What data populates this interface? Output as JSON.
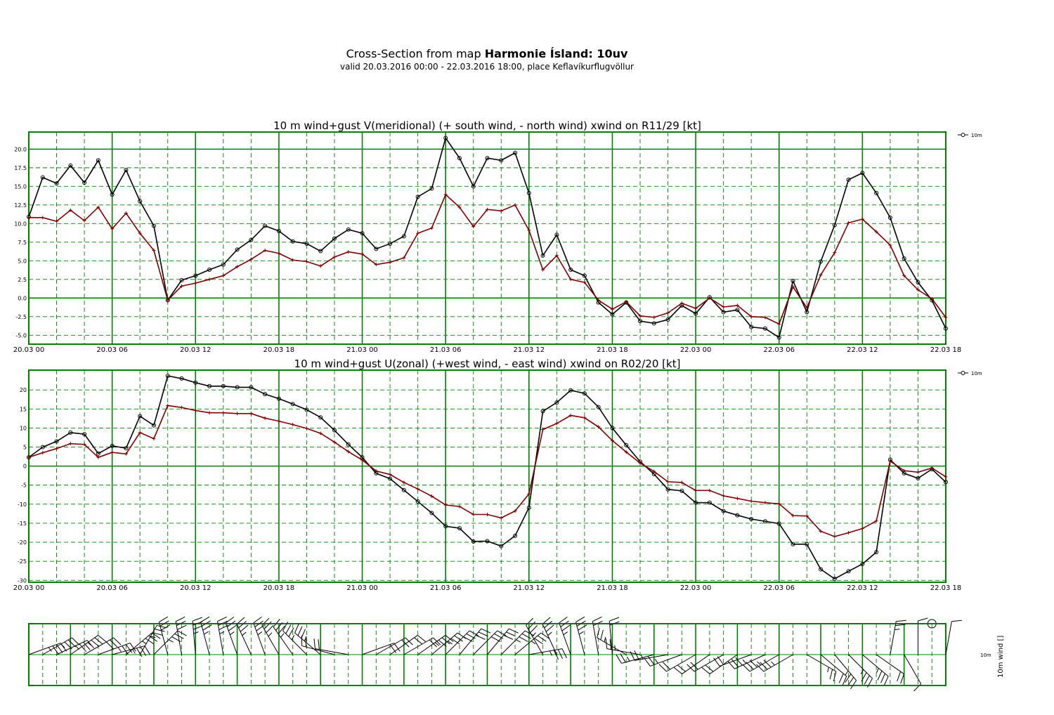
{
  "header": {
    "title_prefix": "Cross-Section from map",
    "title_bold": "Harmonie Ísland: 10uv",
    "subtitle": "valid 20.03.2016 00:00 - 22.03.2016 18:00, place Keflavíkurflugvöllur"
  },
  "colors": {
    "grid": "#008000",
    "gust_line": "#000000",
    "wind_line": "#800000",
    "barb": "#000000"
  },
  "chart_data": [
    {
      "type": "line",
      "title": "10 m wind+gust V(meridional) (+ south wind, - north wind) xwind on R11/29 [kt]",
      "x_tick_labels": [
        "20.03 00",
        "20.03 06",
        "20.03 12",
        "20.03 18",
        "21.03 00",
        "21.03 06",
        "21.03 12",
        "21.03 18",
        "22.03 00",
        "22.03 06",
        "22.03 12",
        "22.03 18"
      ],
      "x_range_hours": [
        0,
        66
      ],
      "ylim": [
        -6.2,
        22.3
      ],
      "y_ticks": [
        -5.0,
        -2.5,
        0.0,
        2.5,
        5.0,
        7.5,
        10.0,
        12.5,
        15.0,
        17.5,
        20.0
      ],
      "y_tick_labels": [
        "-5.0",
        "-2.5",
        "0.0",
        "2.5",
        "5.0",
        "7.5",
        "10.0",
        "12.5",
        "15.0",
        "17.5",
        "20.0"
      ],
      "legend": "10m",
      "legend_position": "outside-top-right",
      "grid": true,
      "x_hours": [
        0,
        1,
        2,
        3,
        4,
        5,
        6,
        7,
        8,
        9,
        10,
        11,
        12,
        13,
        14,
        15,
        16,
        17,
        18,
        19,
        20,
        21,
        22,
        23,
        24,
        25,
        26,
        27,
        28,
        29,
        30,
        31,
        32,
        33,
        34,
        35,
        36,
        37,
        38,
        39,
        40,
        41,
        42,
        43,
        44,
        45,
        46,
        47,
        48,
        49,
        50,
        51,
        52,
        53,
        54,
        55,
        56,
        57,
        58,
        59,
        60,
        61,
        62,
        63,
        64,
        65,
        66
      ],
      "series": [
        {
          "name": "10m",
          "marker": "circle",
          "values": [
            10.9,
            16.2,
            15.4,
            17.8,
            15.5,
            18.5,
            13.9,
            17.2,
            13.0,
            9.7,
            -0.3,
            2.4,
            3.0,
            3.8,
            4.5,
            6.5,
            7.8,
            9.7,
            9.0,
            7.6,
            7.3,
            6.3,
            8.0,
            9.2,
            8.7,
            6.6,
            7.3,
            8.3,
            13.6,
            14.7,
            21.5,
            18.8,
            15.0,
            18.8,
            18.5,
            19.5,
            14.1,
            5.7,
            8.5,
            3.8,
            3.0,
            -0.6,
            -2.2,
            -0.6,
            -3.1,
            -3.4,
            -2.9,
            -1.0,
            -2.1,
            0.1,
            -1.9,
            -1.6,
            -3.9,
            -4.1,
            -5.3,
            2.3,
            -1.9,
            4.9,
            9.8,
            15.9,
            16.8,
            14.1,
            10.8,
            5.3,
            2.1,
            -0.3,
            -4.1
          ]
        },
        {
          "marker": "plus",
          "values": [
            10.8,
            10.8,
            10.3,
            11.8,
            10.4,
            12.2,
            9.3,
            11.4,
            8.7,
            6.4,
            -0.3,
            1.6,
            2.0,
            2.5,
            3.0,
            4.2,
            5.2,
            6.4,
            6.0,
            5.1,
            4.9,
            4.3,
            5.5,
            6.2,
            5.9,
            4.5,
            4.8,
            5.4,
            8.7,
            9.4,
            13.9,
            12.2,
            9.6,
            11.9,
            11.7,
            12.5,
            9.1,
            3.8,
            5.7,
            2.5,
            2.1,
            -0.3,
            -1.5,
            -0.5,
            -2.4,
            -2.6,
            -2.0,
            -0.7,
            -1.4,
            0.0,
            -1.2,
            -1.0,
            -2.5,
            -2.6,
            -3.5,
            1.5,
            -1.3,
            3.1,
            6.1,
            10.1,
            10.6,
            8.9,
            7.1,
            3.0,
            1.1,
            -0.1,
            -2.6
          ]
        }
      ]
    },
    {
      "type": "line",
      "title": "10 m wind+gust U(zonal) (+west wind, - east wind) xwind on R02/20 [kt]",
      "x_tick_labels": [
        "20.03 00",
        "20.03 06",
        "20.03 12",
        "20.03 18",
        "21.03 00",
        "21.03 06",
        "21.03 12",
        "21.03 18",
        "22.03 00",
        "22.03 06",
        "22.03 12",
        "22.03 18"
      ],
      "x_range_hours": [
        0,
        66
      ],
      "ylim": [
        -30.5,
        25.2
      ],
      "y_ticks": [
        -30,
        -25,
        -20,
        -15,
        -10,
        -5,
        0,
        5,
        10,
        15,
        20
      ],
      "y_tick_labels": [
        "-30",
        "-25",
        "-20",
        "-15",
        "-10",
        "-5",
        "0",
        "5",
        "10",
        "15",
        "20"
      ],
      "legend": "10m",
      "legend_position": "outside-top-right",
      "grid": true,
      "x_hours": [
        0,
        1,
        2,
        3,
        4,
        5,
        6,
        7,
        8,
        9,
        10,
        11,
        12,
        13,
        14,
        15,
        16,
        17,
        18,
        19,
        20,
        21,
        22,
        23,
        24,
        25,
        26,
        27,
        28,
        29,
        30,
        31,
        32,
        33,
        34,
        35,
        36,
        37,
        38,
        39,
        40,
        41,
        42,
        43,
        44,
        45,
        46,
        47,
        48,
        49,
        50,
        51,
        52,
        53,
        54,
        55,
        56,
        57,
        58,
        59,
        60,
        61,
        62,
        63,
        64,
        65,
        66
      ],
      "series": [
        {
          "name": "10m",
          "marker": "circle",
          "values": [
            2.3,
            5.0,
            6.5,
            8.8,
            8.4,
            3.3,
            5.3,
            4.7,
            13.1,
            10.7,
            23.7,
            23.0,
            21.9,
            21.0,
            21.0,
            20.7,
            20.7,
            18.9,
            17.7,
            16.3,
            14.8,
            12.8,
            9.4,
            5.7,
            2.3,
            -1.9,
            -3.3,
            -6.3,
            -9.3,
            -12.3,
            -15.8,
            -16.3,
            -19.8,
            -19.7,
            -21.0,
            -18.3,
            -10.9,
            14.4,
            16.7,
            19.9,
            19.1,
            15.5,
            10.0,
            5.5,
            1.2,
            -2.1,
            -6.1,
            -6.5,
            -9.6,
            -9.6,
            -11.8,
            -12.9,
            -13.9,
            -14.5,
            -15.1,
            -20.5,
            -20.5,
            -27.1,
            -29.6,
            -27.6,
            -25.7,
            -22.6,
            1.7,
            -1.9,
            -3.2,
            -0.8,
            -4.2
          ]
        },
        {
          "marker": "plus",
          "values": [
            2.3,
            3.5,
            4.6,
            5.9,
            5.7,
            2.3,
            3.6,
            3.2,
            8.8,
            7.2,
            15.9,
            15.4,
            14.6,
            14.0,
            14.0,
            13.8,
            13.8,
            12.6,
            11.8,
            10.9,
            9.9,
            8.6,
            6.3,
            3.8,
            1.6,
            -1.3,
            -2.2,
            -4.3,
            -6.0,
            -7.9,
            -10.2,
            -10.6,
            -12.7,
            -12.7,
            -13.6,
            -11.8,
            -7.3,
            9.6,
            11.2,
            13.3,
            12.7,
            10.3,
            6.7,
            3.7,
            0.8,
            -1.4,
            -4.1,
            -4.3,
            -6.4,
            -6.4,
            -7.8,
            -8.5,
            -9.2,
            -9.6,
            -9.9,
            -13.0,
            -13.1,
            -17.1,
            -18.5,
            -17.5,
            -16.4,
            -14.4,
            1.3,
            -1.2,
            -1.6,
            -0.5,
            -2.8
          ]
        }
      ]
    }
  ],
  "barb_panel": {
    "label": "10m wind []",
    "row_label": "10m",
    "barbs": [
      {
        "a": -20,
        "s": 25
      },
      {
        "a": -30,
        "s": 25
      },
      {
        "a": -25,
        "s": 25
      },
      {
        "a": -35,
        "s": 25
      },
      {
        "a": -30,
        "s": 30
      },
      {
        "a": -20,
        "s": 25
      },
      {
        "a": -15,
        "s": 25
      },
      {
        "a": -40,
        "s": 25
      },
      {
        "a": -60,
        "s": 25
      },
      {
        "a": -45,
        "s": 25
      },
      {
        "a": -105,
        "s": 30
      },
      {
        "a": -100,
        "s": 30
      },
      {
        "a": -95,
        "s": 25
      },
      {
        "a": -105,
        "s": 25
      },
      {
        "a": -100,
        "s": 25
      },
      {
        "a": -110,
        "s": 25
      },
      {
        "a": -115,
        "s": 25
      },
      {
        "a": -110,
        "s": 25
      },
      {
        "a": -120,
        "s": 25
      },
      {
        "a": -125,
        "s": 25
      },
      {
        "a": -135,
        "s": 25
      },
      {
        "a": -140,
        "s": 25
      },
      {
        "a": -165,
        "s": 20
      },
      {
        "a": -170,
        "s": 20
      },
      {
        "a": -20,
        "s": 20
      },
      {
        "a": -30,
        "s": 20
      },
      {
        "a": -35,
        "s": 20
      },
      {
        "a": -30,
        "s": 20
      },
      {
        "a": -35,
        "s": 25
      },
      {
        "a": -40,
        "s": 25
      },
      {
        "a": -45,
        "s": 30
      },
      {
        "a": -50,
        "s": 30
      },
      {
        "a": -45,
        "s": 30
      },
      {
        "a": -50,
        "s": 30
      },
      {
        "a": -45,
        "s": 25
      },
      {
        "a": -40,
        "s": 25
      },
      {
        "a": -10,
        "s": 25
      },
      {
        "a": -120,
        "s": 25
      },
      {
        "a": -115,
        "s": 25
      },
      {
        "a": -110,
        "s": 25
      },
      {
        "a": -105,
        "s": 25
      },
      {
        "a": -100,
        "s": 20
      },
      {
        "a": -95,
        "s": 20
      },
      {
        "a": -150,
        "s": 15
      },
      {
        "a": -170,
        "s": 15
      },
      {
        "a": 165,
        "s": 15
      },
      {
        "a": 170,
        "s": 15
      },
      {
        "a": 160,
        "s": 15
      },
      {
        "a": 150,
        "s": 20
      },
      {
        "a": 145,
        "s": 20
      },
      {
        "a": 150,
        "s": 20
      },
      {
        "a": 145,
        "s": 20
      },
      {
        "a": 160,
        "s": 20
      },
      {
        "a": 155,
        "s": 25
      },
      {
        "a": 150,
        "s": 25
      },
      {
        "a": 150,
        "s": 25
      },
      {
        "a": 30,
        "s": 15
      },
      {
        "a": 40,
        "s": 20
      },
      {
        "a": 50,
        "s": 25
      },
      {
        "a": 45,
        "s": 25
      },
      {
        "a": 40,
        "s": 25
      },
      {
        "a": 35,
        "s": 20
      },
      {
        "a": -80,
        "s": 15
      },
      {
        "a": 60,
        "s": 10
      },
      {
        "a": -90,
        "s": 10
      },
      {
        "a": 0,
        "s": 0
      },
      {
        "a": -80,
        "s": 10
      }
    ]
  }
}
